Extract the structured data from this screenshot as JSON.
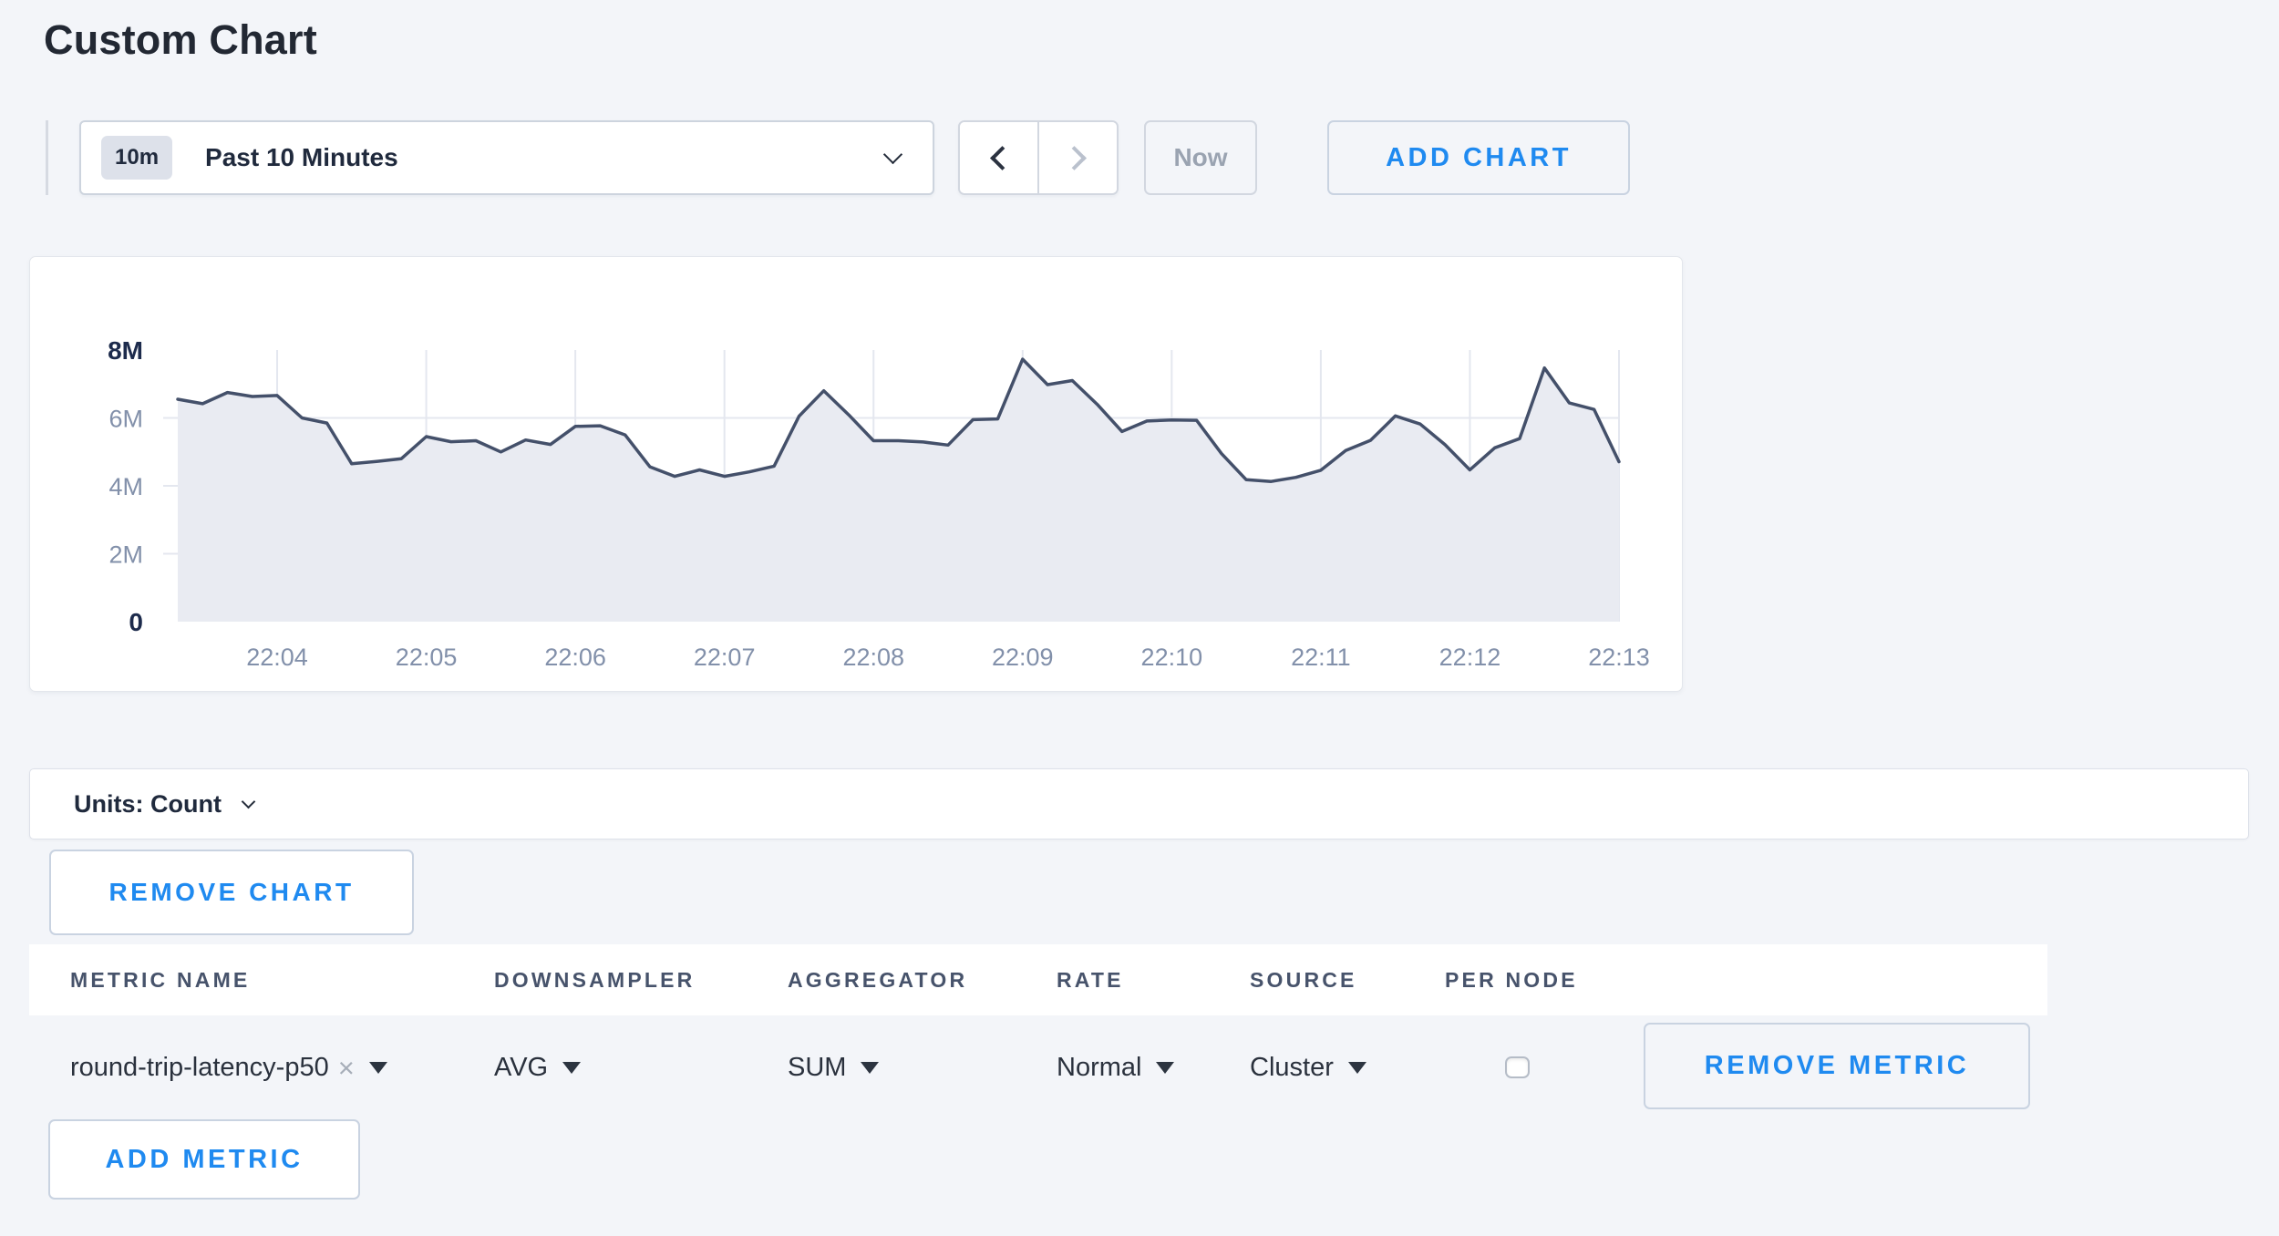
{
  "page": {
    "title": "Custom Chart",
    "background_color": "#f3f5f9",
    "accent_blue": "#1f8af0"
  },
  "toolbar": {
    "time_window_badge": "10m",
    "time_window_label": "Past 10 Minutes",
    "now_label": "Now",
    "add_chart_label": "ADD CHART"
  },
  "icons": {
    "close": "×"
  },
  "chart_data": {
    "type": "area",
    "x_start": "22:03:20",
    "x_interval_seconds": 10,
    "x_ticks": [
      "22:04",
      "22:05",
      "22:06",
      "22:07",
      "22:08",
      "22:09",
      "22:10",
      "22:11",
      "22:12",
      "22:13"
    ],
    "x_tick_indices": [
      4,
      10,
      16,
      22,
      28,
      34,
      40,
      46,
      52,
      58
    ],
    "ylim": [
      0,
      8
    ],
    "y_unit": "Count (millions)",
    "y_ticks": [
      {
        "value": 8,
        "label": "8M",
        "bold": true,
        "grid": false
      },
      {
        "value": 6,
        "label": "6M",
        "bold": false,
        "grid": true
      },
      {
        "value": 4,
        "label": "4M",
        "bold": false,
        "grid": true
      },
      {
        "value": 2,
        "label": "2M",
        "bold": false,
        "grid": true
      },
      {
        "value": 0,
        "label": "0",
        "bold": true,
        "grid": false
      }
    ],
    "series": [
      {
        "name": "round-trip-latency-p50",
        "values_millions": [
          6.55,
          6.42,
          6.75,
          6.63,
          6.66,
          6.0,
          5.85,
          4.65,
          4.72,
          4.8,
          5.45,
          5.3,
          5.33,
          5.0,
          5.35,
          5.22,
          5.75,
          5.77,
          5.5,
          4.56,
          4.28,
          4.47,
          4.28,
          4.41,
          4.58,
          6.05,
          6.8,
          6.09,
          5.33,
          5.33,
          5.29,
          5.2,
          5.95,
          5.97,
          7.73,
          6.98,
          7.1,
          6.4,
          5.6,
          5.91,
          5.94,
          5.93,
          4.95,
          4.18,
          4.13,
          4.25,
          4.46,
          5.04,
          5.34,
          6.06,
          5.82,
          5.21,
          4.47,
          5.12,
          5.39,
          7.47,
          6.44,
          6.25,
          4.71
        ]
      }
    ],
    "line_color": "#44506a",
    "fill_color": "#e9ebf2",
    "grid_color": "#e4e7ef",
    "legend": "none"
  },
  "units_bar": {
    "label": "Units: Count"
  },
  "chart_actions": {
    "remove_chart_label": "REMOVE CHART"
  },
  "metrics_table": {
    "columns": [
      "METRIC NAME",
      "DOWNSAMPLER",
      "AGGREGATOR",
      "RATE",
      "SOURCE",
      "PER NODE"
    ],
    "rows": [
      {
        "metric_name": "round-trip-latency-p50",
        "downsampler": "AVG",
        "aggregator": "SUM",
        "rate": "Normal",
        "source": "Cluster",
        "per_node_checked": false,
        "remove_label": "REMOVE METRIC"
      }
    ],
    "add_metric_label": "ADD METRIC"
  }
}
